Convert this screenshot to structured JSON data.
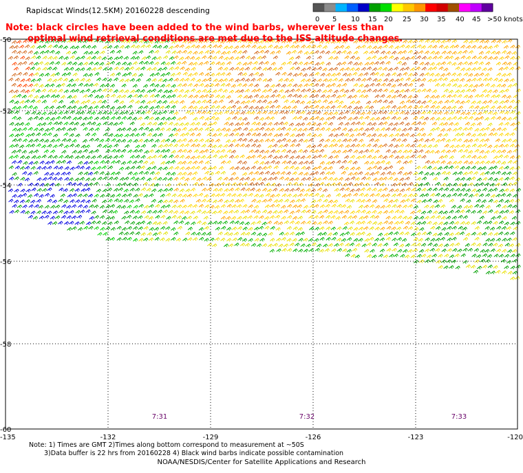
{
  "title": "Rapidscat Winds(12.5KM) 20160228 descending",
  "note_line1": "Note: black circles have been added to the wind barbs, wherever less than",
  "note_line2": "optimal wind retrieval conditions are met due to the ISS altitude changes.",
  "colorbar": {
    "labels": [
      "0",
      "5",
      "10",
      "15",
      "20",
      "25",
      "30",
      "35",
      "40",
      "45",
      ">50 knots"
    ],
    "colors": [
      "#555555",
      "#8c8c8c",
      "#00b4ff",
      "#0060ff",
      "#0000c8",
      "#00a000",
      "#00e000",
      "#ffff00",
      "#ffc800",
      "#ff9600",
      "#ff0000",
      "#d20000",
      "#a05000",
      "#ff00ff",
      "#c000ff",
      "#6000a0"
    ]
  },
  "lat_labels": [
    "-50",
    "-52",
    "-54",
    "-56",
    "-58",
    "-60"
  ],
  "lon_labels": [
    "-135",
    "-132",
    "-129",
    "-126",
    "-123",
    "-120"
  ],
  "time_labels": [
    "7:31",
    "7:32",
    "7:33"
  ],
  "footnote_line1": "Note: 1) Times are GMT 2)Times along bottom correspond to measurement at ~50S",
  "footnote_line2": "3)Data buffer is 22 hrs from 20160228 4) Black wind barbs indicate possible contamination",
  "credit": "NOAA/NESDIS/Center for Satellite Applications and Research"
}
